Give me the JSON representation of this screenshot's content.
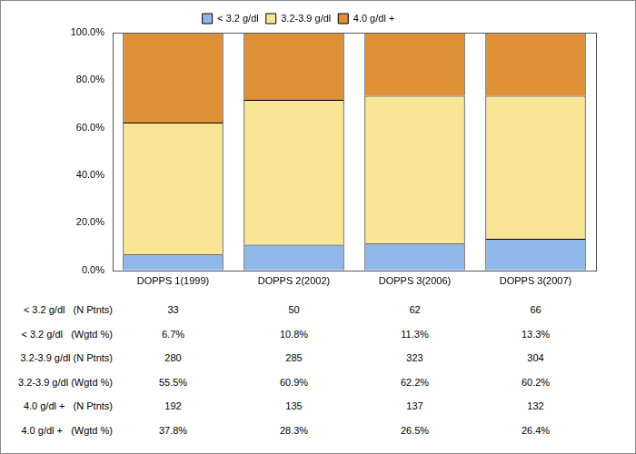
{
  "chart_data": {
    "type": "bar",
    "stacked": true,
    "grid": false,
    "legend": "top",
    "categories": [
      "DOPPS 1(1999)",
      "DOPPS 2(2002)",
      "DOPPS 3(2006)",
      "DOPPS 3(2007)"
    ],
    "series": [
      {
        "name": "< 3.2 g/dl",
        "color": "#8fb8e8",
        "values": [
          6.7,
          10.8,
          11.3,
          13.3
        ]
      },
      {
        "name": "3.2-3.9 g/dl",
        "color": "#fae496",
        "values": [
          55.5,
          60.9,
          62.2,
          60.2
        ]
      },
      {
        "name": "4.0 g/dl +",
        "color": "#dd9035",
        "values": [
          37.8,
          28.3,
          26.5,
          26.4
        ]
      }
    ],
    "ylim": [
      0,
      100
    ],
    "yticks": [
      {
        "value": 0,
        "label": "0.0%"
      },
      {
        "value": 20,
        "label": "20.0%"
      },
      {
        "value": 40,
        "label": "40.0%"
      },
      {
        "value": 60,
        "label": "60.0%"
      },
      {
        "value": 80,
        "label": "80.0%"
      },
      {
        "value": 100,
        "label": "100.0%"
      }
    ]
  },
  "table": {
    "rows": [
      {
        "label": "< 3.2 g/dl   (N Ptnts)",
        "cells": [
          "33",
          "50",
          "62",
          "66"
        ]
      },
      {
        "label": "< 3.2 g/dl   (Wgtd %)",
        "cells": [
          "6.7%",
          "10.8%",
          "11.3%",
          "13.3%"
        ]
      },
      {
        "label": "3.2-3.9 g/dl (N Ptnts)",
        "cells": [
          "280",
          "285",
          "323",
          "304"
        ]
      },
      {
        "label": "3.2-3.9 g/dl (Wgtd %)",
        "cells": [
          "55.5%",
          "60.9%",
          "62.2%",
          "60.2%"
        ]
      },
      {
        "label": "4.0 g/dl +   (N Ptnts)",
        "cells": [
          "192",
          "135",
          "137",
          "132"
        ]
      },
      {
        "label": "4.0 g/dl +   (Wgtd %)",
        "cells": [
          "37.8%",
          "28.3%",
          "26.5%",
          "26.4%"
        ]
      }
    ]
  }
}
